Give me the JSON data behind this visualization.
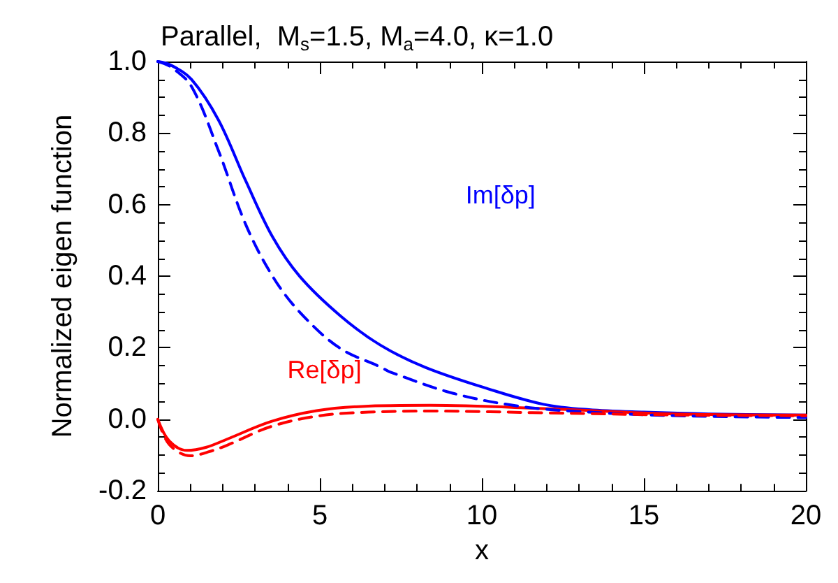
{
  "chart_data": {
    "type": "line",
    "title": "Parallel,  M$_{s}$=1.5, M$_{a}$=4.0, κ=1.0",
    "xlabel": "x",
    "ylabel": "Normalized eigen function",
    "xlim": [
      0,
      20
    ],
    "xticks": [
      0,
      5,
      10,
      15,
      20
    ],
    "ylim": [
      -0.2,
      1.0
    ],
    "yticks": [
      {
        "value": -0.2,
        "label": "-0.2"
      },
      {
        "value": 0,
        "label": "0.0"
      },
      {
        "value": 0.2,
        "label": "0.2"
      },
      {
        "value": 0.4,
        "label": "0.4"
      },
      {
        "value": 0.6,
        "label": "0.6"
      },
      {
        "value": 0.8,
        "label": "0.8"
      },
      {
        "value": 1.0,
        "label": "1.0"
      }
    ],
    "grid": false,
    "marker": "none",
    "annotations": [
      "Im[δp]",
      "Re[δp]"
    ],
    "series": [
      {
        "color": "#0000ff",
        "line_style": "solid",
        "x": [
          0,
          0.4,
          1.04,
          1.875,
          2.71,
          3.54,
          4.375,
          5.625,
          6.875,
          8.26,
          10.2,
          11.9,
          13.3,
          15,
          17,
          20
        ],
        "values": [
          1.0,
          0.99,
          0.95,
          0.836,
          0.667,
          0.51,
          0.4,
          0.29,
          0.207,
          0.145,
          0.085,
          0.042,
          0.027,
          0.02,
          0.015,
          0.012
        ]
      },
      {
        "color": "#ff0000",
        "line_style": "solid",
        "x": [
          0,
          0.35,
          0.9,
          1.5,
          2.15,
          3.5,
          4.9,
          6.3,
          8.4,
          11.9,
          16,
          20
        ],
        "values": [
          0,
          -0.06,
          -0.087,
          -0.078,
          -0.055,
          -0.006,
          0.024,
          0.036,
          0.039,
          0.03,
          0.015,
          0.012
        ]
      },
      {
        "color": "#0000ff",
        "line_style": "dashed",
        "x": [
          0,
          0.4,
          1.04,
          1.875,
          2.71,
          3.54,
          4.375,
          5.6,
          6.9,
          7.15,
          9.1,
          11.2,
          13.3,
          16,
          20
        ],
        "values": [
          1.0,
          0.985,
          0.93,
          0.75,
          0.545,
          0.4,
          0.3,
          0.2,
          0.145,
          0.133,
          0.073,
          0.036,
          0.02,
          0.01,
          0.005
        ]
      },
      {
        "color": "#ff0000",
        "line_style": "dashed",
        "x": [
          0,
          0.35,
          1.0,
          1.6,
          2.2,
          3.5,
          5,
          6.5,
          8.5,
          12,
          16,
          20
        ],
        "values": [
          0,
          -0.07,
          -0.102,
          -0.09,
          -0.07,
          -0.02,
          0.01,
          0.02,
          0.023,
          0.018,
          0.012,
          0.01
        ]
      }
    ]
  }
}
